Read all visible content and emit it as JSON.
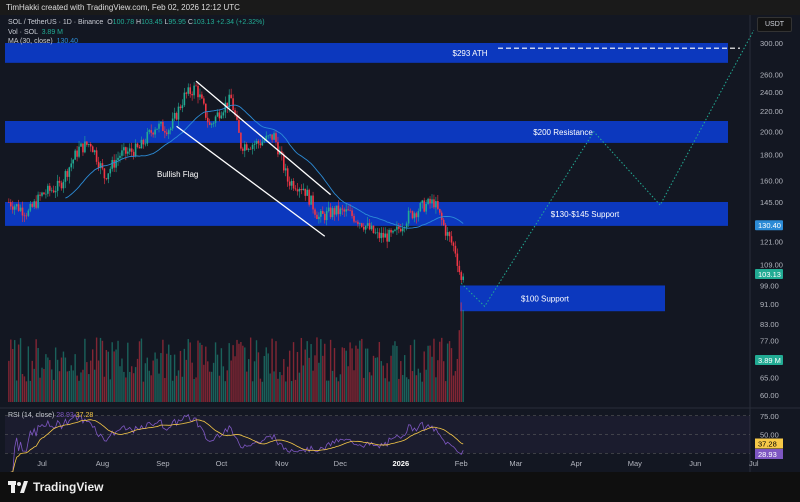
{
  "header": {
    "credit": "TimHakki created with TradingView.com, Feb 02, 2026 12:12 UTC"
  },
  "legend": {
    "symbol": "SOL / TetherUS · 1D · Binance",
    "o": "O",
    "o_val": "100.78",
    "h": "H",
    "h_val": "103.45",
    "l": "L",
    "l_val": "95.95",
    "c": "C",
    "c_val": "103.13",
    "change": "+2.34 (+2.32%)",
    "vol_label": "Vol · SOL",
    "vol_val": "3.89 M",
    "ma_label": "MA (30, close)",
    "ma_val": "130.40",
    "rsi_label": "RSI (14, close)",
    "rsi_val1": "28.93",
    "rsi_val2": "37.28"
  },
  "currency": "USDT",
  "brand": "TradingView",
  "colors": {
    "up": "#22ab94",
    "down": "#f23645",
    "zone": "#0c3ccc",
    "ma": "#2c8bd6",
    "rsi": "#7e57c2",
    "rsi_ma": "#f7c948",
    "projection": "#22ab94"
  },
  "chart_data": {
    "type": "candlestick",
    "scale": "log",
    "ylim": [
      58,
      315
    ],
    "y_ticks": [
      "300.00",
      "260.00",
      "240.00",
      "220.00",
      "200.00",
      "180.00",
      "160.00",
      "145.00",
      "121.00",
      "109.00",
      "99.00",
      "91.00",
      "83.00",
      "77.00",
      "65.00",
      "60.00"
    ],
    "x_ticks": [
      {
        "label": "Jul",
        "date": "2025-07-01"
      },
      {
        "label": "Aug",
        "date": "2025-08-01"
      },
      {
        "label": "Sep",
        "date": "2025-09-01"
      },
      {
        "label": "Oct",
        "date": "2025-10-01"
      },
      {
        "label": "Nov",
        "date": "2025-11-01"
      },
      {
        "label": "Dec",
        "date": "2025-12-01"
      },
      {
        "label": "2026",
        "date": "2026-01-01"
      },
      {
        "label": "Feb",
        "date": "2026-02-01"
      },
      {
        "label": "Mar",
        "date": "2026-03-01"
      },
      {
        "label": "Apr",
        "date": "2026-04-01"
      },
      {
        "label": "May",
        "date": "2026-05-01"
      },
      {
        "label": "Jun",
        "date": "2026-06-01"
      },
      {
        "label": "Jul",
        "date": "2026-07-01"
      }
    ],
    "close_keypoints": [
      [
        "2025-06-14",
        145
      ],
      [
        "2025-06-24",
        138
      ],
      [
        "2025-07-01",
        150
      ],
      [
        "2025-07-10",
        156
      ],
      [
        "2025-07-20",
        185
      ],
      [
        "2025-07-26",
        190
      ],
      [
        "2025-08-02",
        163
      ],
      [
        "2025-08-10",
        180
      ],
      [
        "2025-08-20",
        185
      ],
      [
        "2025-08-28",
        205
      ],
      [
        "2025-09-05",
        203
      ],
      [
        "2025-09-12",
        235
      ],
      [
        "2025-09-18",
        245
      ],
      [
        "2025-09-25",
        205
      ],
      [
        "2025-10-01",
        222
      ],
      [
        "2025-10-06",
        232
      ],
      [
        "2025-10-11",
        188
      ],
      [
        "2025-10-20",
        190
      ],
      [
        "2025-10-28",
        196
      ],
      [
        "2025-11-04",
        160
      ],
      [
        "2025-11-12",
        155
      ],
      [
        "2025-11-20",
        135
      ],
      [
        "2025-11-28",
        139
      ],
      [
        "2025-12-05",
        138
      ],
      [
        "2025-12-12",
        132
      ],
      [
        "2025-12-20",
        124
      ],
      [
        "2025-12-28",
        124
      ],
      [
        "2026-01-05",
        136
      ],
      [
        "2026-01-12",
        142
      ],
      [
        "2026-01-18",
        145
      ],
      [
        "2026-01-24",
        127
      ],
      [
        "2026-01-29",
        116
      ],
      [
        "2026-02-01",
        100.78
      ],
      [
        "2026-02-02",
        103.13
      ]
    ],
    "zones": [
      {
        "label": "$293 ATH",
        "low": 274,
        "high": 300,
        "from": "2025-06-14",
        "to": "2026-07-01"
      },
      {
        "label": "$200 Resistance",
        "low": 190,
        "high": 210,
        "from": "2025-06-14",
        "to": "2026-07-01"
      },
      {
        "label": "$130-$145 Support",
        "low": 130,
        "high": 145,
        "from": "2025-06-14",
        "to": "2026-07-01"
      },
      {
        "label": "$100 Support",
        "low": 88,
        "high": 99,
        "from": "2026-02-01",
        "to": "2026-05-15"
      }
    ],
    "ath_line": 293,
    "flag": {
      "label": "Bullish Flag",
      "upper": [
        [
          "2025-09-18",
          252
        ],
        [
          "2025-11-26",
          150
        ]
      ],
      "lower": [
        [
          "2025-09-08",
          205
        ],
        [
          "2025-11-23",
          124
        ]
      ]
    },
    "projection": [
      [
        "2026-02-01",
        100
      ],
      [
        "2026-02-13",
        90
      ],
      [
        "2026-04-10",
        200
      ],
      [
        "2026-05-14",
        143
      ],
      [
        "2026-07-01",
        318
      ]
    ],
    "ma_last": 130.4,
    "last_price": 103.13,
    "volume_last": "3.89M",
    "rsi": {
      "levels": [
        "75.00",
        "50.00"
      ],
      "last": 28.93,
      "ma_last": 37.28
    }
  }
}
